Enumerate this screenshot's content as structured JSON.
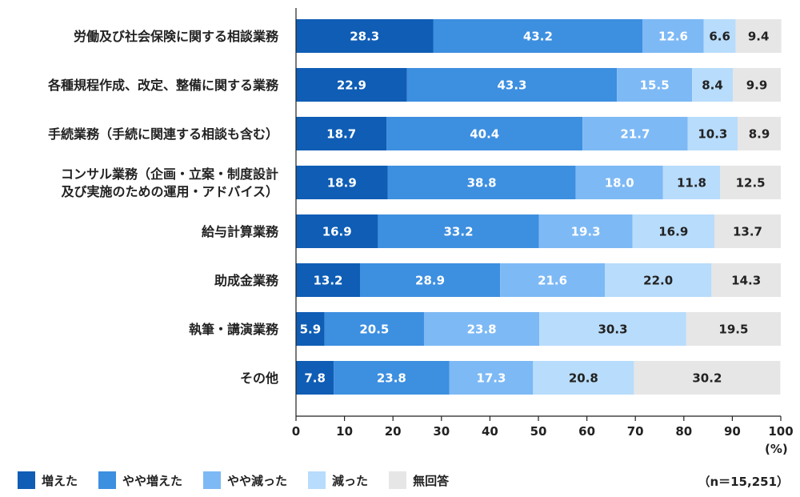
{
  "chart_data": {
    "type": "bar",
    "orientation": "horizontal",
    "stacked": true,
    "categories": [
      [
        "労働及び社会保険に関する相談業務"
      ],
      [
        "各種規程作成、改定、整備に関する業務"
      ],
      [
        "手続業務（手続に関連する相談も含む）"
      ],
      [
        "コンサル業務（企画・立案・制度設計",
        "及び実施のための運用・アドバイス）"
      ],
      [
        "給与計算業務"
      ],
      [
        "助成金業務"
      ],
      [
        "執筆・講演業務"
      ],
      [
        "その他"
      ]
    ],
    "series": [
      {
        "name": "増えた",
        "color": "#0f5db5",
        "text_color": "#ffffff",
        "values": [
          28.3,
          22.9,
          18.7,
          18.9,
          16.9,
          13.2,
          5.9,
          7.8
        ]
      },
      {
        "name": "やや増えた",
        "color": "#3d8fe0",
        "text_color": "#ffffff",
        "values": [
          43.2,
          43.3,
          40.4,
          38.8,
          33.2,
          28.9,
          20.5,
          23.8
        ]
      },
      {
        "name": "やや減った",
        "color": "#7db9f5",
        "text_color": "#ffffff",
        "values": [
          12.6,
          15.5,
          21.7,
          18.0,
          19.3,
          21.6,
          23.8,
          17.3
        ]
      },
      {
        "name": "減った",
        "color": "#b8dcfb",
        "text_color": "#222222",
        "values": [
          6.6,
          8.4,
          10.3,
          11.8,
          16.9,
          22.0,
          30.3,
          20.8
        ]
      },
      {
        "name": "無回答",
        "color": "#e6e6e6",
        "text_color": "#222222",
        "values": [
          9.4,
          9.9,
          8.9,
          12.5,
          13.7,
          14.3,
          19.5,
          30.2
        ]
      }
    ],
    "xlim": [
      0,
      100
    ],
    "x_ticks": [
      0,
      10,
      20,
      30,
      40,
      50,
      60,
      70,
      80,
      90,
      100
    ],
    "x_unit": "(%)",
    "legend_position": "bottom-left",
    "note": "（n＝15,251）",
    "grid": false
  }
}
